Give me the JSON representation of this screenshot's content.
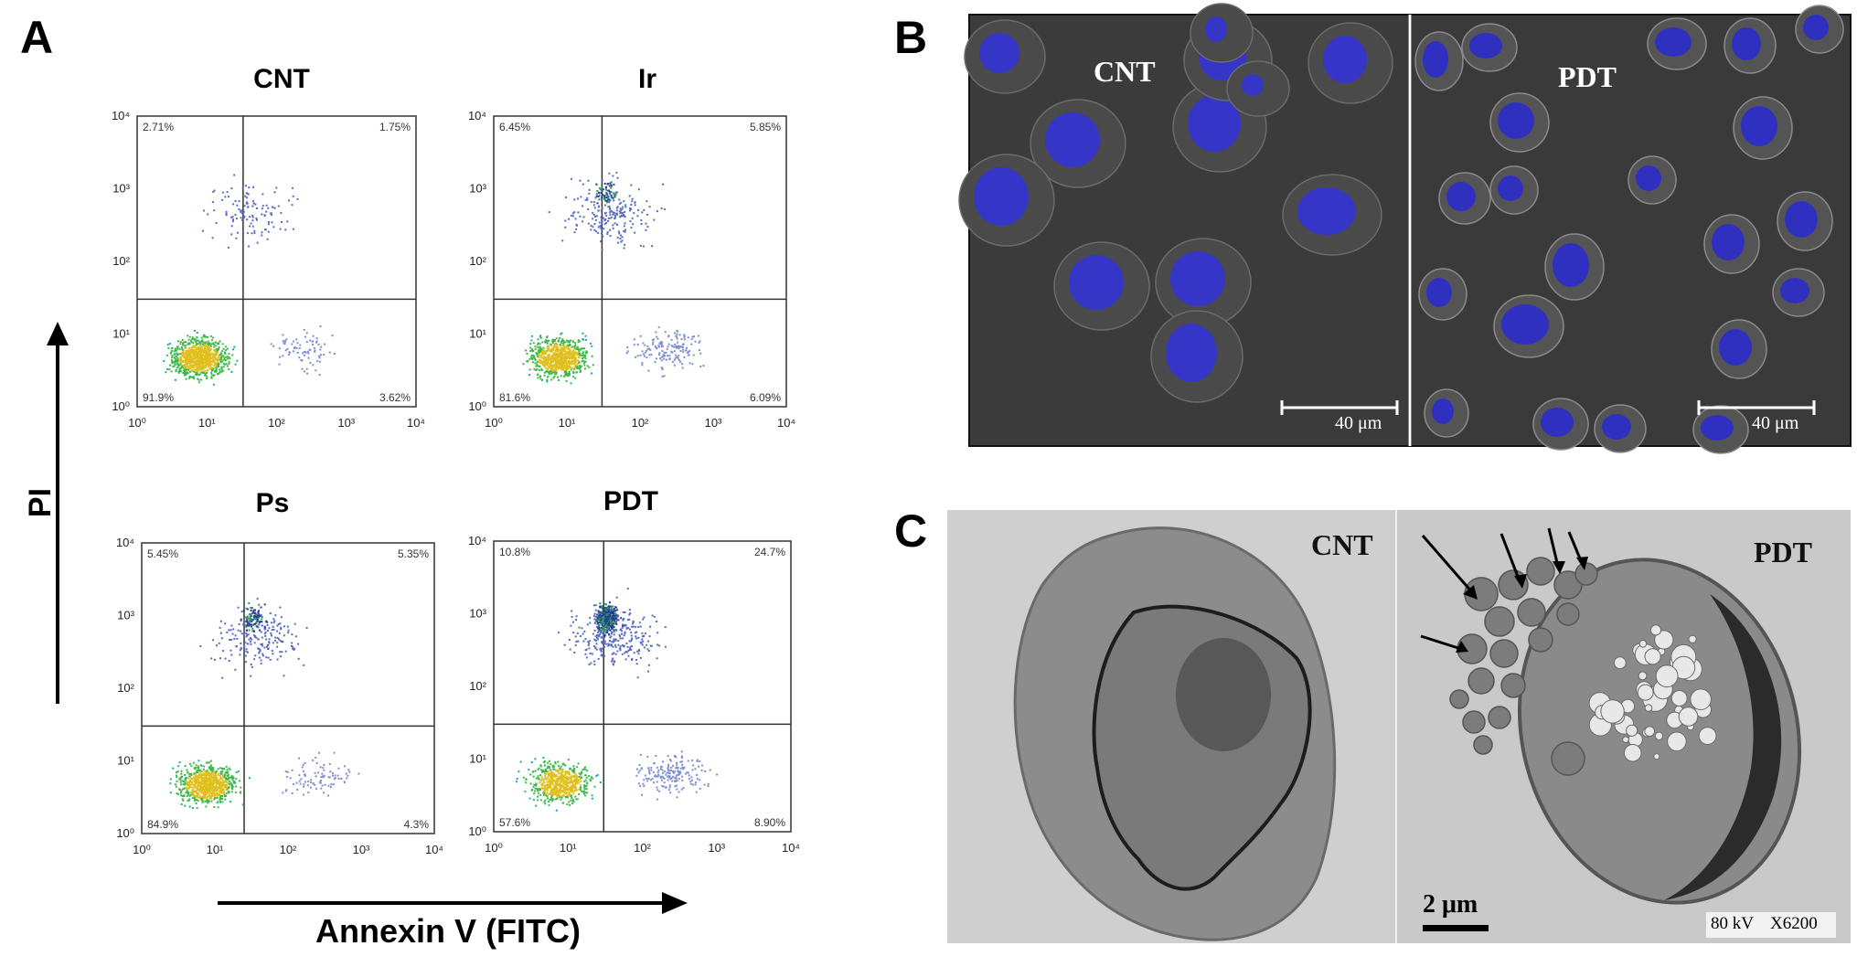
{
  "panel_letters": {
    "a": "A",
    "b": "B",
    "c": "C"
  },
  "panel_a": {
    "y_axis_label": "PI",
    "x_axis_label": "Annexin V (FITC)",
    "tick_labels": [
      "10⁰",
      "10¹",
      "10²",
      "10³",
      "10⁴"
    ],
    "plots": [
      {
        "title": "CNT",
        "q_ul": "2.71%",
        "q_ur": "1.75%",
        "q_ll": "91.9%",
        "q_lr": "3.62%"
      },
      {
        "title": "Ir",
        "q_ul": "6.45%",
        "q_ur": "5.85%",
        "q_ll": "81.6%",
        "q_lr": "6.09%"
      },
      {
        "title": "Ps",
        "q_ul": "5.45%",
        "q_ur": "5.35%",
        "q_ll": "84.9%",
        "q_lr": "4.3%"
      },
      {
        "title": "PDT",
        "q_ul": "10.8%",
        "q_ur": "24.7%",
        "q_ll": "57.6%",
        "q_lr": "8.90%"
      }
    ]
  },
  "panel_b": {
    "left_label": "CNT",
    "right_label": "PDT",
    "scale_label_left": "40 μm",
    "scale_label_right": "40 μm"
  },
  "panel_c": {
    "left_label": "CNT",
    "right_label": "PDT",
    "scale_label": "2 μm",
    "voltage": "80 kV",
    "magnification": "X6200"
  }
}
